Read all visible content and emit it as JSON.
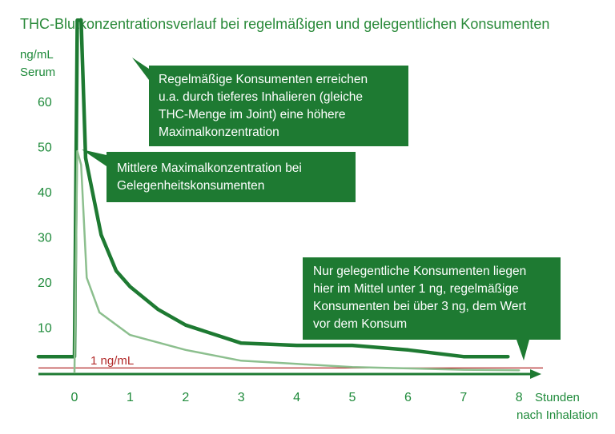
{
  "chart_data": {
    "type": "line",
    "title": "THC-Blutkonzentrationsverlauf bei regelmäßigen und gelegentlichen Konsumenten",
    "ylabel": [
      "ng/mL",
      "Serum"
    ],
    "xlabel": [
      "Stunden",
      "nach Inhalation"
    ],
    "xlim": [
      0,
      8
    ],
    "ylim": [
      0,
      65
    ],
    "y_ticks": [
      "10",
      "20",
      "30",
      "40",
      "50",
      "60"
    ],
    "x_ticks": [
      "0",
      "1",
      "2",
      "3",
      "4",
      "5",
      "6",
      "7",
      "8"
    ],
    "series": [
      {
        "key": "regular",
        "color": "#1e7a32",
        "points": [
          [
            -0.65,
            3.5
          ],
          [
            0,
            3.5
          ],
          [
            0.05,
            78
          ],
          [
            0.12,
            78
          ],
          [
            0.2,
            47.5
          ],
          [
            0.48,
            30.5
          ],
          [
            0.75,
            22.5
          ],
          [
            1.0,
            19
          ],
          [
            1.5,
            14
          ],
          [
            2.0,
            10.5
          ],
          [
            3.0,
            6.5
          ],
          [
            4.0,
            6
          ],
          [
            5.0,
            6
          ],
          [
            6.0,
            5
          ],
          [
            7.0,
            3.5
          ],
          [
            7.8,
            3.5
          ]
        ]
      },
      {
        "key": "occasional",
        "color": "#8cbf8e",
        "points": [
          [
            0,
            0
          ],
          [
            0.05,
            49
          ],
          [
            0.12,
            46
          ],
          [
            0.22,
            21
          ],
          [
            0.45,
            13.3
          ],
          [
            1.0,
            8.3
          ],
          [
            2.0,
            5
          ],
          [
            3.0,
            2.6
          ],
          [
            4.0,
            1.9
          ],
          [
            5.0,
            1.2
          ],
          [
            6.0,
            0.9
          ],
          [
            7.0,
            0.6
          ],
          [
            8.0,
            0.5
          ]
        ]
      }
    ],
    "reference_line": {
      "value": 1,
      "label": "1 ng/mL",
      "color": "#b22a2a"
    },
    "annotations": [
      {
        "key": "regular_max",
        "lines": [
          "Regelmäßige Konsumenten erreichen",
          "u.a. durch tieferes Inhalieren (gleiche",
          "THC-Menge im Joint) eine höhere",
          "Maximalkonzentration"
        ]
      },
      {
        "key": "occasional_max",
        "lines": [
          "Mittlere Maximalkonzentration bei",
          "Gelegenheitskonsumenten"
        ]
      },
      {
        "key": "baseline",
        "lines": [
          "Nur gelegentliche Konsumenten liegen",
          "hier im Mittel unter 1 ng, regelmäßige",
          "Konsumenten bei über 3 ng, dem Wert",
          "vor dem Konsum"
        ]
      }
    ],
    "colors": {
      "accent": "#1e7a32",
      "text_green": "#2a8a3a",
      "light_series": "#8cbf8e",
      "reference": "#b22a2a",
      "box_fill": "#1e7a32"
    }
  }
}
